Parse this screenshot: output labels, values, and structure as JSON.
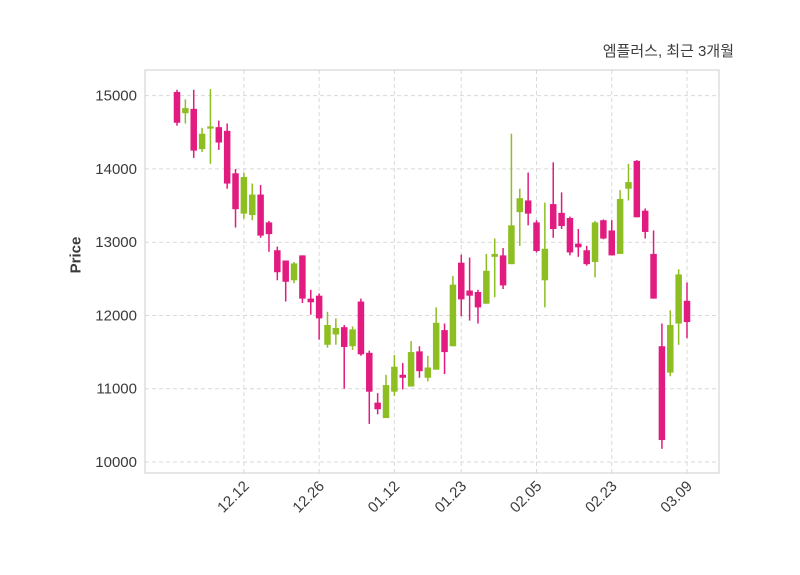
{
  "chart_data": {
    "type": "candlestick",
    "title": "엠플러스, 최근 3개월",
    "ylabel": "Price",
    "ylim": [
      9850,
      15350
    ],
    "yticks": [
      10000,
      11000,
      12000,
      13000,
      14000,
      15000
    ],
    "xticks": [
      {
        "index": 8,
        "label": "12.12"
      },
      {
        "index": 17,
        "label": "12.26"
      },
      {
        "index": 26,
        "label": "01.12"
      },
      {
        "index": 34,
        "label": "01.23"
      },
      {
        "index": 43,
        "label": "02.05"
      },
      {
        "index": 52,
        "label": "02.23"
      },
      {
        "index": 61,
        "label": "03.09"
      }
    ],
    "grid": true,
    "legend": "none",
    "colors": {
      "up": "#8dbe22",
      "down": "#e11b7f",
      "grid": "#d9d9d9",
      "spine": "#cccccc",
      "text": "#3b3b3b",
      "background": "#ffffff"
    },
    "ohlc_format": [
      "open",
      "high",
      "low",
      "close"
    ],
    "candles": [
      [
        15050,
        15080,
        14590,
        14630
      ],
      [
        14760,
        14950,
        14620,
        14830
      ],
      [
        14820,
        15080,
        14150,
        14250
      ],
      [
        14270,
        14560,
        14230,
        14480
      ],
      [
        14550,
        15090,
        14070,
        14580
      ],
      [
        14570,
        14660,
        14260,
        14360
      ],
      [
        14520,
        14620,
        13730,
        13800
      ],
      [
        13940,
        14000,
        13200,
        13450
      ],
      [
        13390,
        13950,
        13320,
        13890
      ],
      [
        13370,
        13800,
        13300,
        13650
      ],
      [
        13650,
        13780,
        13060,
        13090
      ],
      [
        13270,
        13290,
        12870,
        13110
      ],
      [
        12890,
        12940,
        12480,
        12590
      ],
      [
        12750,
        12750,
        12190,
        12460
      ],
      [
        12480,
        12730,
        12440,
        12710
      ],
      [
        12820,
        12820,
        12170,
        12230
      ],
      [
        12230,
        12350,
        12010,
        12180
      ],
      [
        12270,
        12300,
        11670,
        11960
      ],
      [
        11600,
        12050,
        11560,
        11870
      ],
      [
        11740,
        11960,
        11600,
        11830
      ],
      [
        11840,
        11870,
        11000,
        11570
      ],
      [
        11580,
        11850,
        11530,
        11810
      ],
      [
        12190,
        12230,
        11450,
        11470
      ],
      [
        11490,
        11520,
        10520,
        10960
      ],
      [
        10810,
        10940,
        10650,
        10720
      ],
      [
        10600,
        11190,
        10600,
        11050
      ],
      [
        10960,
        11460,
        10900,
        11300
      ],
      [
        11190,
        11350,
        10990,
        11150
      ],
      [
        11030,
        11650,
        11030,
        11500
      ],
      [
        11510,
        11580,
        11150,
        11240
      ],
      [
        11150,
        11450,
        11100,
        11290
      ],
      [
        11260,
        12110,
        11260,
        11900
      ],
      [
        11800,
        11890,
        11200,
        11500
      ],
      [
        11580,
        12540,
        11580,
        12420
      ],
      [
        12720,
        12830,
        11990,
        12220
      ],
      [
        12340,
        12790,
        11930,
        12270
      ],
      [
        12320,
        12350,
        11890,
        12110
      ],
      [
        12160,
        12840,
        12160,
        12610
      ],
      [
        12800,
        13050,
        12250,
        12840
      ],
      [
        12820,
        12920,
        12360,
        12410
      ],
      [
        12700,
        14480,
        12700,
        13230
      ],
      [
        13410,
        13730,
        12950,
        13600
      ],
      [
        13570,
        13950,
        13230,
        13390
      ],
      [
        13270,
        13300,
        12860,
        12880
      ],
      [
        12480,
        13540,
        12110,
        12910
      ],
      [
        13520,
        14090,
        13060,
        13180
      ],
      [
        13400,
        13680,
        13180,
        13220
      ],
      [
        13330,
        13350,
        12820,
        12860
      ],
      [
        12980,
        13180,
        12800,
        12930
      ],
      [
        12890,
        12950,
        12680,
        12700
      ],
      [
        12730,
        13290,
        12520,
        13270
      ],
      [
        13300,
        13310,
        13040,
        13050
      ],
      [
        13160,
        13300,
        12820,
        12820
      ],
      [
        12840,
        13710,
        12840,
        13590
      ],
      [
        13730,
        14070,
        13570,
        13820
      ],
      [
        14110,
        14120,
        13340,
        13340
      ],
      [
        13430,
        13460,
        13050,
        13140
      ],
      [
        12840,
        13160,
        12230,
        12230
      ],
      [
        11580,
        11890,
        10180,
        10300
      ],
      [
        11220,
        12070,
        11170,
        11870
      ],
      [
        11890,
        12630,
        11600,
        12560
      ],
      [
        12200,
        12450,
        11690,
        11910
      ]
    ]
  }
}
